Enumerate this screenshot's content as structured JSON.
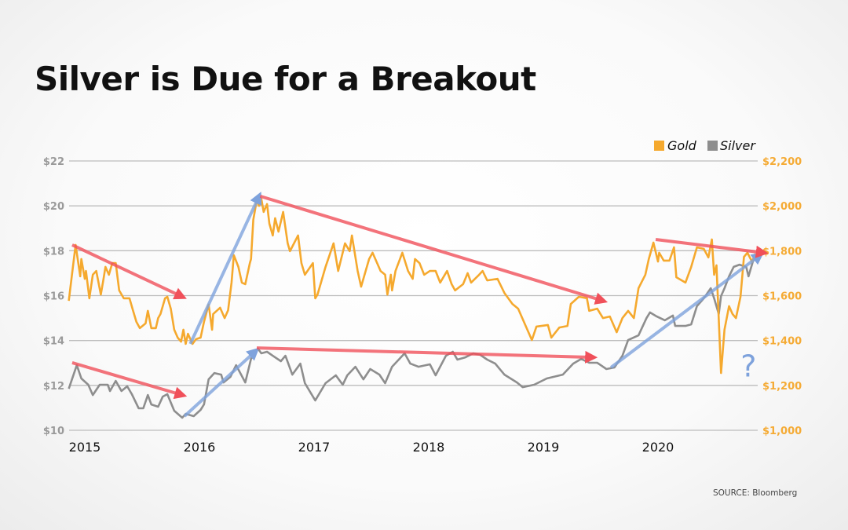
{
  "title": "Silver is Due for a Breakout",
  "source": "SOURCE: Bloomberg",
  "chart_data": {
    "type": "line",
    "title": "Silver is Due for a Breakout",
    "xlabel": "",
    "ylabel_left": "",
    "ylabel_right": "",
    "x_ticks": [
      "2015",
      "2016",
      "2017",
      "2018",
      "2019",
      "2020"
    ],
    "xlim": [
      2014.86,
      2020.9
    ],
    "y_left_ticks": [
      "$10",
      "$12",
      "$14",
      "$16",
      "$18",
      "$20",
      "$22"
    ],
    "y_left_lim": [
      10,
      22
    ],
    "y_right_ticks": [
      "$1,000",
      "$1,200",
      "$1,400",
      "$1,600",
      "$1,800",
      "$2,000",
      "$2,200"
    ],
    "y_right_lim": [
      1000,
      2200
    ],
    "grid": "horizontal",
    "legend": {
      "placement": "top-right",
      "entries": [
        "Gold",
        "Silver"
      ]
    },
    "colors": {
      "gold": "#f5a92e",
      "silver": "#8e8e8e",
      "red_arrow": "#f0505a",
      "blue_arrow": "#7ea2dc"
    },
    "series": [
      {
        "name": "Gold",
        "axis": "right",
        "color": "#f5a92e",
        "points": [
          [
            2014.86,
            1577
          ],
          [
            2014.92,
            1826
          ],
          [
            2014.96,
            1686
          ],
          [
            2014.97,
            1763
          ],
          [
            2015.0,
            1675
          ],
          [
            2015.01,
            1710
          ],
          [
            2015.04,
            1588
          ],
          [
            2015.07,
            1693
          ],
          [
            2015.1,
            1710
          ],
          [
            2015.14,
            1605
          ],
          [
            2015.16,
            1665
          ],
          [
            2015.18,
            1728
          ],
          [
            2015.21,
            1693
          ],
          [
            2015.24,
            1745
          ],
          [
            2015.27,
            1745
          ],
          [
            2015.3,
            1623
          ],
          [
            2015.34,
            1588
          ],
          [
            2015.39,
            1588
          ],
          [
            2015.42,
            1535
          ],
          [
            2015.45,
            1483
          ],
          [
            2015.48,
            1455
          ],
          [
            2015.53,
            1476
          ],
          [
            2015.55,
            1532
          ],
          [
            2015.58,
            1455
          ],
          [
            2015.62,
            1455
          ],
          [
            2015.64,
            1500
          ],
          [
            2015.66,
            1518
          ],
          [
            2015.7,
            1588
          ],
          [
            2015.72,
            1595
          ],
          [
            2015.75,
            1542
          ],
          [
            2015.78,
            1448
          ],
          [
            2015.81,
            1413
          ],
          [
            2015.84,
            1395
          ],
          [
            2015.86,
            1448
          ],
          [
            2015.88,
            1385
          ],
          [
            2015.9,
            1430
          ],
          [
            2015.94,
            1385
          ],
          [
            2015.97,
            1406
          ],
          [
            2016.01,
            1413
          ],
          [
            2016.04,
            1483
          ],
          [
            2016.08,
            1560
          ],
          [
            2016.11,
            1448
          ],
          [
            2016.12,
            1518
          ],
          [
            2016.18,
            1546
          ],
          [
            2016.22,
            1500
          ],
          [
            2016.25,
            1535
          ],
          [
            2016.28,
            1658
          ],
          [
            2016.3,
            1780
          ],
          [
            2016.34,
            1728
          ],
          [
            2016.37,
            1658
          ],
          [
            2016.4,
            1651
          ],
          [
            2016.44,
            1745
          ],
          [
            2016.45,
            1763
          ],
          [
            2016.47,
            1938
          ],
          [
            2016.5,
            2025
          ],
          [
            2016.52,
            2000
          ],
          [
            2016.54,
            2032
          ],
          [
            2016.56,
            1973
          ],
          [
            2016.59,
            2008
          ],
          [
            2016.61,
            1920
          ],
          [
            2016.64,
            1868
          ],
          [
            2016.66,
            1945
          ],
          [
            2016.69,
            1885
          ],
          [
            2016.73,
            1973
          ],
          [
            2016.77,
            1833
          ],
          [
            2016.79,
            1798
          ],
          [
            2016.86,
            1868
          ],
          [
            2016.89,
            1745
          ],
          [
            2016.92,
            1693
          ],
          [
            2016.99,
            1745
          ],
          [
            2017.01,
            1588
          ],
          [
            2017.03,
            1605
          ],
          [
            2017.1,
            1728
          ],
          [
            2017.17,
            1833
          ],
          [
            2017.21,
            1710
          ],
          [
            2017.27,
            1833
          ],
          [
            2017.31,
            1798
          ],
          [
            2017.33,
            1868
          ],
          [
            2017.38,
            1710
          ],
          [
            2017.41,
            1640
          ],
          [
            2017.48,
            1763
          ],
          [
            2017.51,
            1791
          ],
          [
            2017.58,
            1710
          ],
          [
            2017.62,
            1693
          ],
          [
            2017.64,
            1605
          ],
          [
            2017.67,
            1693
          ],
          [
            2017.68,
            1623
          ],
          [
            2017.71,
            1710
          ],
          [
            2017.77,
            1791
          ],
          [
            2017.82,
            1710
          ],
          [
            2017.86,
            1675
          ],
          [
            2017.88,
            1763
          ],
          [
            2017.92,
            1745
          ],
          [
            2017.96,
            1693
          ],
          [
            2018.01,
            1710
          ],
          [
            2018.06,
            1710
          ],
          [
            2018.1,
            1658
          ],
          [
            2018.16,
            1710
          ],
          [
            2018.2,
            1651
          ],
          [
            2018.23,
            1623
          ],
          [
            2018.3,
            1651
          ],
          [
            2018.34,
            1700
          ],
          [
            2018.37,
            1658
          ],
          [
            2018.44,
            1693
          ],
          [
            2018.47,
            1710
          ],
          [
            2018.51,
            1668
          ],
          [
            2018.6,
            1675
          ],
          [
            2018.66,
            1612
          ],
          [
            2018.73,
            1563
          ],
          [
            2018.78,
            1542
          ],
          [
            2018.9,
            1402
          ],
          [
            2018.94,
            1462
          ],
          [
            2019.04,
            1469
          ],
          [
            2019.07,
            1413
          ],
          [
            2019.14,
            1458
          ],
          [
            2019.21,
            1465
          ],
          [
            2019.24,
            1563
          ],
          [
            2019.31,
            1595
          ],
          [
            2019.38,
            1588
          ],
          [
            2019.4,
            1532
          ],
          [
            2019.47,
            1542
          ],
          [
            2019.52,
            1500
          ],
          [
            2019.58,
            1507
          ],
          [
            2019.64,
            1437
          ],
          [
            2019.69,
            1500
          ],
          [
            2019.74,
            1532
          ],
          [
            2019.79,
            1500
          ],
          [
            2019.83,
            1633
          ],
          [
            2019.89,
            1693
          ],
          [
            2019.92,
            1763
          ],
          [
            2019.96,
            1836
          ],
          [
            2020.0,
            1752
          ],
          [
            2020.01,
            1791
          ],
          [
            2020.05,
            1756
          ],
          [
            2020.1,
            1756
          ],
          [
            2020.14,
            1815
          ],
          [
            2020.16,
            1682
          ],
          [
            2020.24,
            1658
          ],
          [
            2020.29,
            1728
          ],
          [
            2020.34,
            1815
          ],
          [
            2020.4,
            1808
          ],
          [
            2020.44,
            1770
          ],
          [
            2020.47,
            1850
          ],
          [
            2020.49,
            1693
          ],
          [
            2020.51,
            1735
          ],
          [
            2020.55,
            1255
          ],
          [
            2020.58,
            1448
          ],
          [
            2020.62,
            1553
          ],
          [
            2020.65,
            1518
          ],
          [
            2020.68,
            1500
          ],
          [
            2020.72,
            1595
          ],
          [
            2020.75,
            1773
          ],
          [
            2020.78,
            1791
          ],
          [
            2020.82,
            1752
          ],
          [
            2020.85,
            1787
          ]
        ]
      },
      {
        "name": "Silver",
        "axis": "left",
        "color": "#8e8e8e",
        "points": [
          [
            2014.86,
            11.85
          ],
          [
            2014.93,
            12.9
          ],
          [
            2014.97,
            12.31
          ],
          [
            2015.03,
            12.03
          ],
          [
            2015.07,
            11.57
          ],
          [
            2015.13,
            12.03
          ],
          [
            2015.2,
            12.03
          ],
          [
            2015.22,
            11.75
          ],
          [
            2015.27,
            12.2
          ],
          [
            2015.32,
            11.75
          ],
          [
            2015.37,
            11.96
          ],
          [
            2015.41,
            11.61
          ],
          [
            2015.47,
            10.98
          ],
          [
            2015.51,
            10.98
          ],
          [
            2015.55,
            11.57
          ],
          [
            2015.58,
            11.15
          ],
          [
            2015.64,
            11.05
          ],
          [
            2015.68,
            11.5
          ],
          [
            2015.72,
            11.61
          ],
          [
            2015.78,
            10.87
          ],
          [
            2015.85,
            10.56
          ],
          [
            2015.88,
            10.73
          ],
          [
            2015.95,
            10.63
          ],
          [
            2016.01,
            10.91
          ],
          [
            2016.04,
            11.15
          ],
          [
            2016.08,
            12.27
          ],
          [
            2016.13,
            12.55
          ],
          [
            2016.19,
            12.48
          ],
          [
            2016.21,
            12.13
          ],
          [
            2016.27,
            12.38
          ],
          [
            2016.32,
            12.9
          ],
          [
            2016.4,
            12.13
          ],
          [
            2016.45,
            13.18
          ],
          [
            2016.51,
            13.64
          ],
          [
            2016.54,
            13.43
          ],
          [
            2016.59,
            13.5
          ],
          [
            2016.64,
            13.32
          ],
          [
            2016.71,
            13.08
          ],
          [
            2016.75,
            13.32
          ],
          [
            2016.81,
            12.48
          ],
          [
            2016.88,
            12.97
          ],
          [
            2016.92,
            12.1
          ],
          [
            2017.01,
            11.33
          ],
          [
            2017.1,
            12.1
          ],
          [
            2017.19,
            12.45
          ],
          [
            2017.25,
            12.03
          ],
          [
            2017.29,
            12.45
          ],
          [
            2017.36,
            12.83
          ],
          [
            2017.43,
            12.27
          ],
          [
            2017.49,
            12.73
          ],
          [
            2017.57,
            12.48
          ],
          [
            2017.62,
            12.1
          ],
          [
            2017.68,
            12.83
          ],
          [
            2017.79,
            13.43
          ],
          [
            2017.84,
            12.97
          ],
          [
            2017.91,
            12.83
          ],
          [
            2018.01,
            12.94
          ],
          [
            2018.06,
            12.45
          ],
          [
            2018.15,
            13.32
          ],
          [
            2018.21,
            13.5
          ],
          [
            2018.25,
            13.15
          ],
          [
            2018.32,
            13.25
          ],
          [
            2018.39,
            13.43
          ],
          [
            2018.45,
            13.36
          ],
          [
            2018.51,
            13.15
          ],
          [
            2018.58,
            12.97
          ],
          [
            2018.66,
            12.48
          ],
          [
            2018.77,
            12.13
          ],
          [
            2018.82,
            11.92
          ],
          [
            2018.92,
            12.03
          ],
          [
            2019.03,
            12.31
          ],
          [
            2019.17,
            12.48
          ],
          [
            2019.26,
            12.97
          ],
          [
            2019.33,
            13.18
          ],
          [
            2019.4,
            13.01
          ],
          [
            2019.47,
            13.01
          ],
          [
            2019.55,
            12.73
          ],
          [
            2019.62,
            12.8
          ],
          [
            2019.69,
            13.32
          ],
          [
            2019.74,
            14.02
          ],
          [
            2019.83,
            14.23
          ],
          [
            2019.9,
            15.0
          ],
          [
            2019.93,
            15.25
          ],
          [
            2019.99,
            15.07
          ],
          [
            2020.06,
            14.9
          ],
          [
            2020.13,
            15.11
          ],
          [
            2020.15,
            14.65
          ],
          [
            2020.24,
            14.65
          ],
          [
            2020.29,
            14.72
          ],
          [
            2020.34,
            15.53
          ],
          [
            2020.4,
            15.88
          ],
          [
            2020.46,
            16.33
          ],
          [
            2020.49,
            15.88
          ],
          [
            2020.53,
            15.18
          ],
          [
            2020.55,
            15.98
          ],
          [
            2020.58,
            16.33
          ],
          [
            2020.62,
            16.86
          ],
          [
            2020.66,
            17.28
          ],
          [
            2020.71,
            17.38
          ],
          [
            2020.77,
            17.28
          ],
          [
            2020.79,
            16.86
          ],
          [
            2020.84,
            17.73
          ],
          [
            2020.86,
            17.73
          ]
        ]
      }
    ],
    "annotations": [
      {
        "type": "arrow",
        "color": "red",
        "axis": "left",
        "from": [
          2014.89,
          18.26
        ],
        "to": [
          2015.85,
          15.95
        ]
      },
      {
        "type": "arrow",
        "color": "red",
        "axis": "left",
        "from": [
          2014.89,
          13.01
        ],
        "to": [
          2015.85,
          11.57
        ]
      },
      {
        "type": "arrow",
        "color": "blue",
        "axis": "left",
        "from": [
          2015.92,
          13.85
        ],
        "to": [
          2016.52,
          20.43
        ]
      },
      {
        "type": "arrow",
        "color": "blue",
        "axis": "left",
        "from": [
          2015.87,
          10.63
        ],
        "to": [
          2016.49,
          13.53
        ]
      },
      {
        "type": "arrow",
        "color": "red",
        "axis": "left",
        "from": [
          2016.53,
          20.43
        ],
        "to": [
          2019.52,
          15.77
        ]
      },
      {
        "type": "arrow",
        "color": "red",
        "axis": "left",
        "from": [
          2016.5,
          13.67
        ],
        "to": [
          2019.43,
          13.25
        ]
      },
      {
        "type": "arrow",
        "color": "blue",
        "axis": "left",
        "from": [
          2019.59,
          12.8
        ],
        "to": [
          2020.89,
          17.8
        ]
      },
      {
        "type": "arrow",
        "color": "red",
        "axis": "left",
        "from": [
          2019.98,
          18.5
        ],
        "to": [
          2020.92,
          17.91
        ]
      },
      {
        "type": "text",
        "text": "?",
        "color": "blue",
        "at": [
          2020.79,
          12.4
        ]
      }
    ]
  }
}
